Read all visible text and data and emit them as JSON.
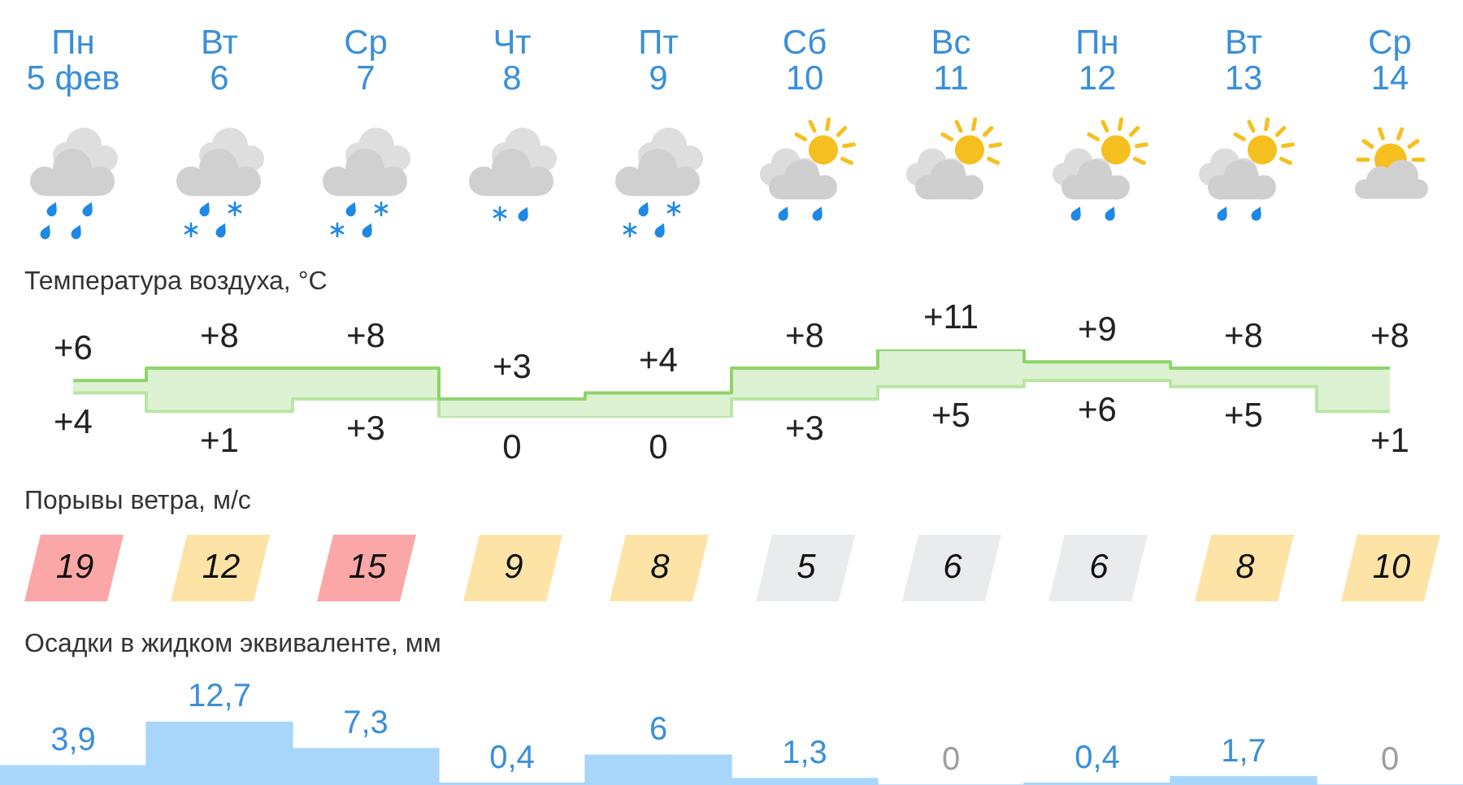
{
  "chart_data": [
    {
      "type": "step",
      "title": "Температура воздуха, °C",
      "categories": [
        "Пн\n5 фев",
        "Вт\n6",
        "Ср\n7",
        "Чт\n8",
        "Пт\n9",
        "Сб\n10",
        "Вс\n11",
        "Пн\n12",
        "Вт\n13",
        "Ср\n14"
      ],
      "series": [
        {
          "color": "#8fd46a",
          "values": [
            6,
            8,
            8,
            3,
            4,
            8,
            11,
            9,
            8,
            8
          ],
          "value_labels": [
            "+6",
            "+8",
            "+8",
            "+3",
            "+4",
            "+8",
            "+11",
            "+9",
            "+8",
            "+8"
          ],
          "lower": [
            4,
            1,
            3,
            0,
            0,
            3,
            5,
            6,
            5,
            1
          ],
          "upper": [
            6,
            8,
            8,
            3,
            4,
            8,
            11,
            9,
            8,
            8
          ]
        },
        {
          "color": "#b9e6a3",
          "values": [
            4,
            1,
            3,
            0,
            0,
            3,
            5,
            6,
            5,
            1
          ],
          "value_labels": [
            "+4",
            "+1",
            "+3",
            "0",
            "0",
            "+3",
            "+5",
            "+6",
            "+5",
            "+1"
          ]
        }
      ],
      "tick_labels": "x"
    },
    {
      "type": "other",
      "title": "Порывы ветра, м/с",
      "values": [
        19,
        12,
        15,
        9,
        8,
        5,
        6,
        6,
        8,
        10
      ],
      "colors": [
        "#fca7a7",
        "#fde4a6",
        "#fca7a7",
        "#fde4a6",
        "#fde4a6",
        "#eaebed",
        "#eaebed",
        "#eaebed",
        "#fde4a6",
        "#fde4a6"
      ],
      "data_labels": true
    },
    {
      "type": "bar",
      "title": "Осадки в жидком эквиваленте, мм",
      "categories": [
        null,
        null,
        null,
        null,
        null,
        null,
        null,
        null,
        null,
        null
      ],
      "values": [
        3.9,
        12.7,
        7.3,
        0.4,
        6,
        1.3,
        0,
        0.4,
        1.7,
        0
      ],
      "value_labels": [
        "3,9",
        "12,7",
        "7,3",
        "0,4",
        "6",
        "1,3",
        "0",
        "0,4",
        "1,7",
        "0"
      ],
      "color": "#a8d6fb",
      "tick_labels": false
    }
  ]
}
